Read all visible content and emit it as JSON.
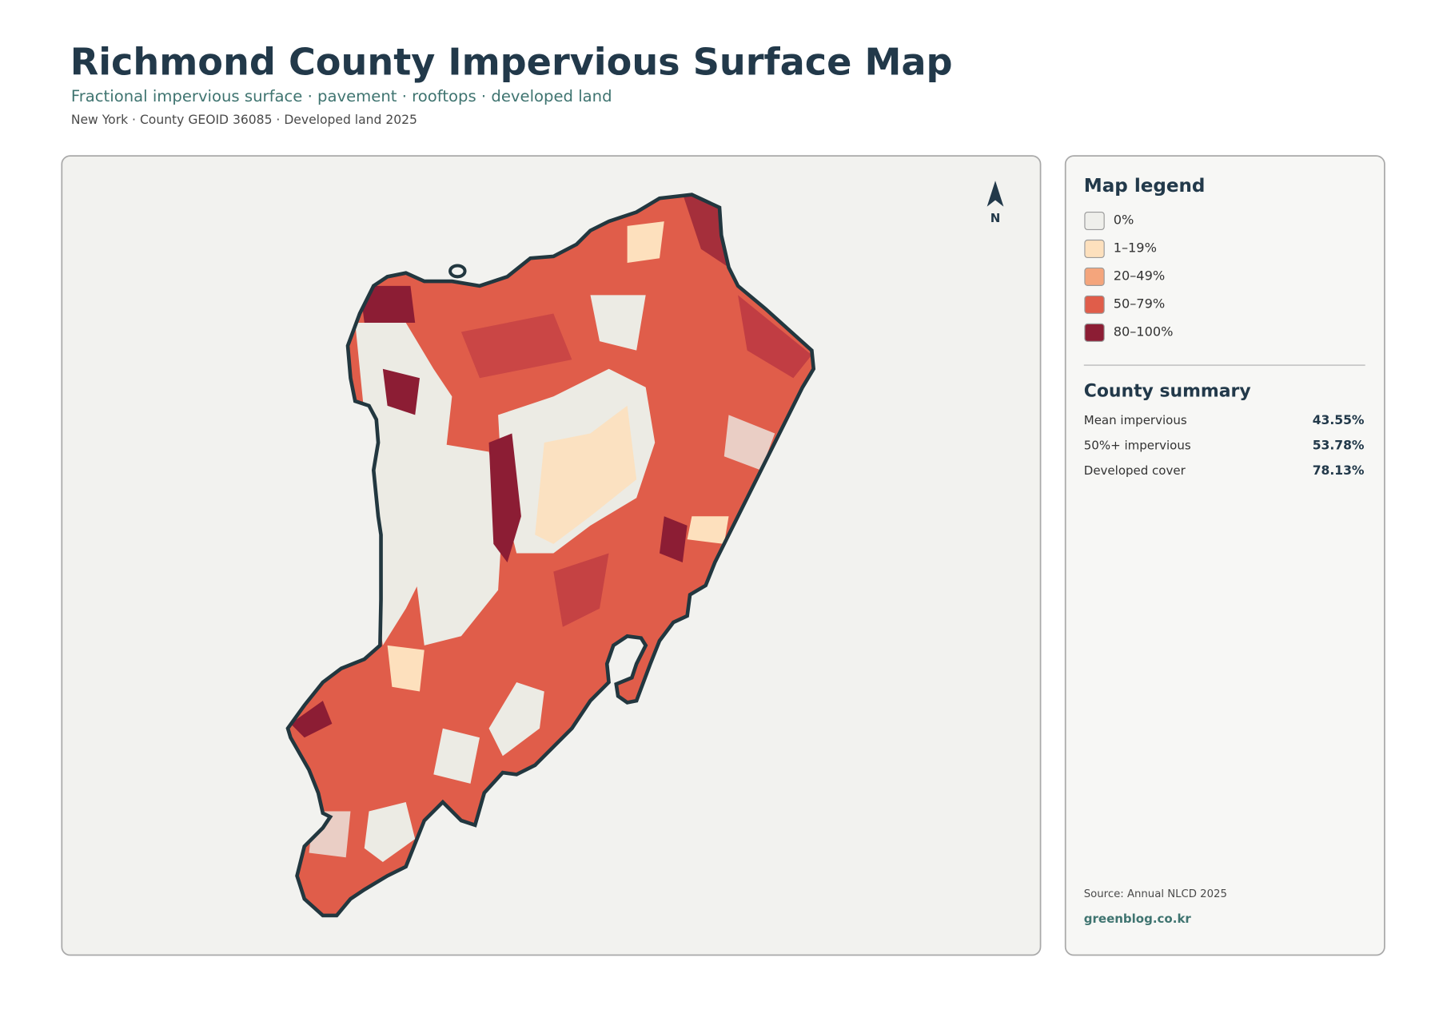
{
  "header": {
    "title": "Richmond County Impervious Surface Map",
    "subtitle": "Fractional impervious surface · pavement · rooftops · developed land",
    "meta": "New York · County GEOID 36085 · Developed land 2025"
  },
  "map": {
    "north_label": "N"
  },
  "legend": {
    "title": "Map legend",
    "items": [
      {
        "label": "0%",
        "color": "#efefeb"
      },
      {
        "label": "1–19%",
        "color": "#fde0bd"
      },
      {
        "label": "20–49%",
        "color": "#f4a57c"
      },
      {
        "label": "50–79%",
        "color": "#e05d4a"
      },
      {
        "label": "80–100%",
        "color": "#8c1d34"
      }
    ]
  },
  "summary": {
    "title": "County summary",
    "rows": [
      {
        "label": "Mean impervious",
        "value": "43.55%"
      },
      {
        "label": "50%+ impervious",
        "value": "53.78%"
      },
      {
        "label": "Developed cover",
        "value": "78.13%"
      }
    ]
  },
  "footer": {
    "source": "Source: Annual NLCD 2025",
    "site": "greenblog.co.kr"
  }
}
